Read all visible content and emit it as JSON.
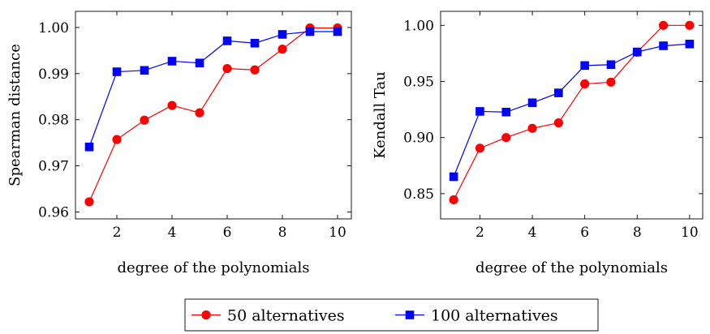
{
  "colors": {
    "series_50": "#ff0000",
    "series_100": "#0000ff"
  },
  "legend": {
    "items": [
      {
        "label": "50 alternatives",
        "color": "#ff0000",
        "marker": "circle"
      },
      {
        "label": "100 alternatives",
        "color": "#0000ff",
        "marker": "square"
      }
    ]
  },
  "chart_data": [
    {
      "type": "line",
      "title": "",
      "xlabel": "degree of the polynomials",
      "ylabel": "Spearman distance",
      "xlim": [
        0.5,
        10.5
      ],
      "ylim": [
        0.9585,
        1.0035
      ],
      "x_ticks": [
        2,
        4,
        6,
        8,
        10
      ],
      "x_tick_labels": [
        "2",
        "4",
        "6",
        "8",
        "10"
      ],
      "y_ticks": [
        0.96,
        0.97,
        0.98,
        0.99,
        1.0
      ],
      "y_tick_labels": [
        "0.96",
        "0.97",
        "0.98",
        "0.99",
        "1.00"
      ],
      "grid": false,
      "x": [
        1,
        2,
        3,
        4,
        5,
        6,
        7,
        8,
        9,
        10
      ],
      "series": [
        {
          "name": "50 alternatives",
          "color": "#ff0000",
          "marker": "circle",
          "values": [
            0.9622,
            0.9757,
            0.9799,
            0.9831,
            0.9815,
            0.9911,
            0.9908,
            0.9953,
            0.9999,
            0.9999
          ]
        },
        {
          "name": "100 alternatives",
          "color": "#0000ff",
          "marker": "square",
          "values": [
            0.9741,
            0.9904,
            0.9907,
            0.9927,
            0.9923,
            0.9971,
            0.9966,
            0.9985,
            0.9991,
            0.9991
          ]
        }
      ]
    },
    {
      "type": "line",
      "title": "",
      "xlabel": "degree of the polynomials",
      "ylabel": "Kendall Tau",
      "xlim": [
        0.5,
        10.5
      ],
      "ylim": [
        0.8275,
        1.0125
      ],
      "x_ticks": [
        2,
        4,
        6,
        8,
        10
      ],
      "x_tick_labels": [
        "2",
        "4",
        "6",
        "8",
        "10"
      ],
      "y_ticks": [
        0.85,
        0.9,
        0.95,
        1.0
      ],
      "y_tick_labels": [
        "0.85",
        "0.90",
        "0.95",
        "1.00"
      ],
      "grid": false,
      "x": [
        1,
        2,
        3,
        4,
        5,
        6,
        7,
        8,
        9,
        10
      ],
      "series": [
        {
          "name": "50 alternatives",
          "color": "#ff0000",
          "marker": "circle",
          "values": [
            0.8445,
            0.8905,
            0.9,
            0.9082,
            0.9131,
            0.9478,
            0.9494,
            0.9761,
            1.0,
            1.0
          ]
        },
        {
          "name": "100 alternatives",
          "color": "#0000ff",
          "marker": "square",
          "values": [
            0.8651,
            0.9233,
            0.9227,
            0.931,
            0.9398,
            0.9642,
            0.965,
            0.9763,
            0.9818,
            0.9834
          ]
        }
      ]
    }
  ]
}
